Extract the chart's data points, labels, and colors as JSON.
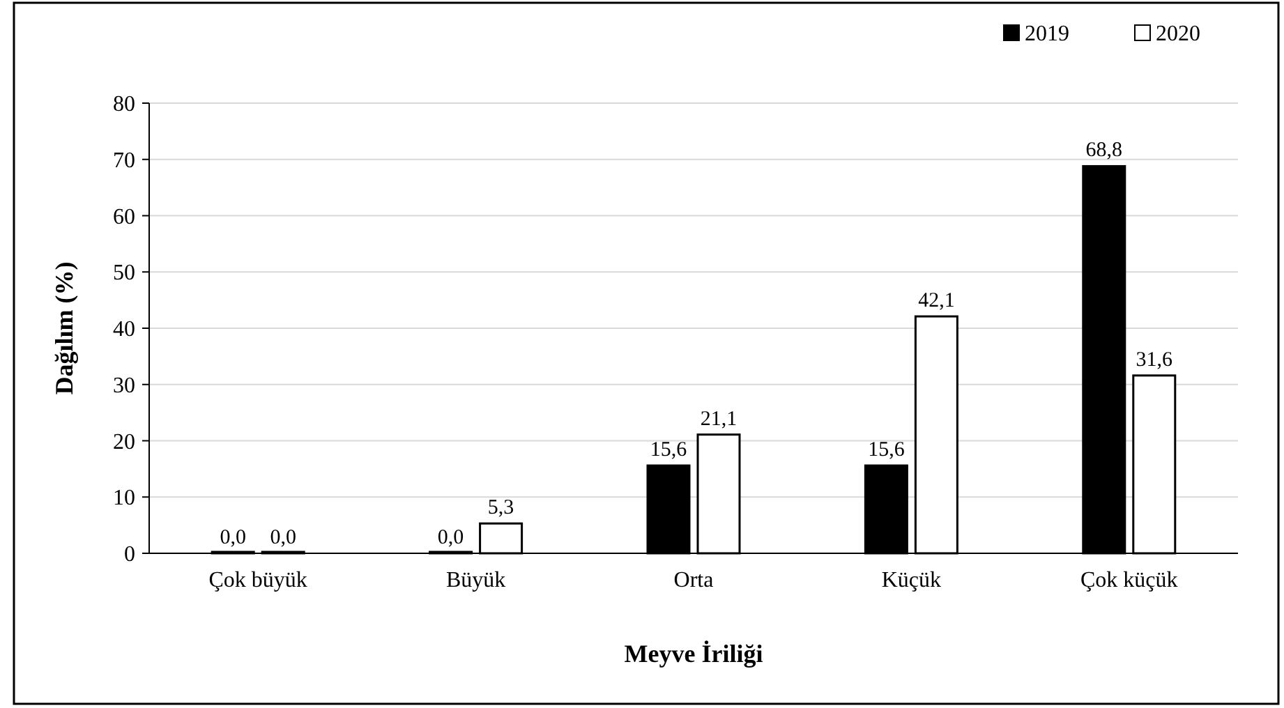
{
  "chart_data": {
    "type": "bar",
    "xlabel": "Meyve İriliği",
    "ylabel": "Dağılım (%)",
    "categories": [
      "Çok büyük",
      "Büyük",
      "Orta",
      "Küçük",
      "Çok küçük"
    ],
    "series": [
      {
        "name": "2019",
        "color": "#000000",
        "values": [
          0,
          0,
          15.6,
          15.6,
          68.8
        ],
        "value_labels": [
          "0,0",
          "0,0",
          "15,6",
          "15,6",
          "68,8"
        ]
      },
      {
        "name": "2020",
        "color": "#ffffff",
        "values": [
          0,
          5.3,
          21.1,
          42.1,
          31.6
        ],
        "value_labels": [
          "0,0",
          "5,3",
          "21,1",
          "42,1",
          "31,6"
        ]
      }
    ],
    "ylim": [
      0,
      80
    ],
    "yticks": [
      0,
      10,
      20,
      30,
      40,
      50,
      60,
      70,
      80
    ],
    "grid": "y",
    "legend": "top right"
  }
}
